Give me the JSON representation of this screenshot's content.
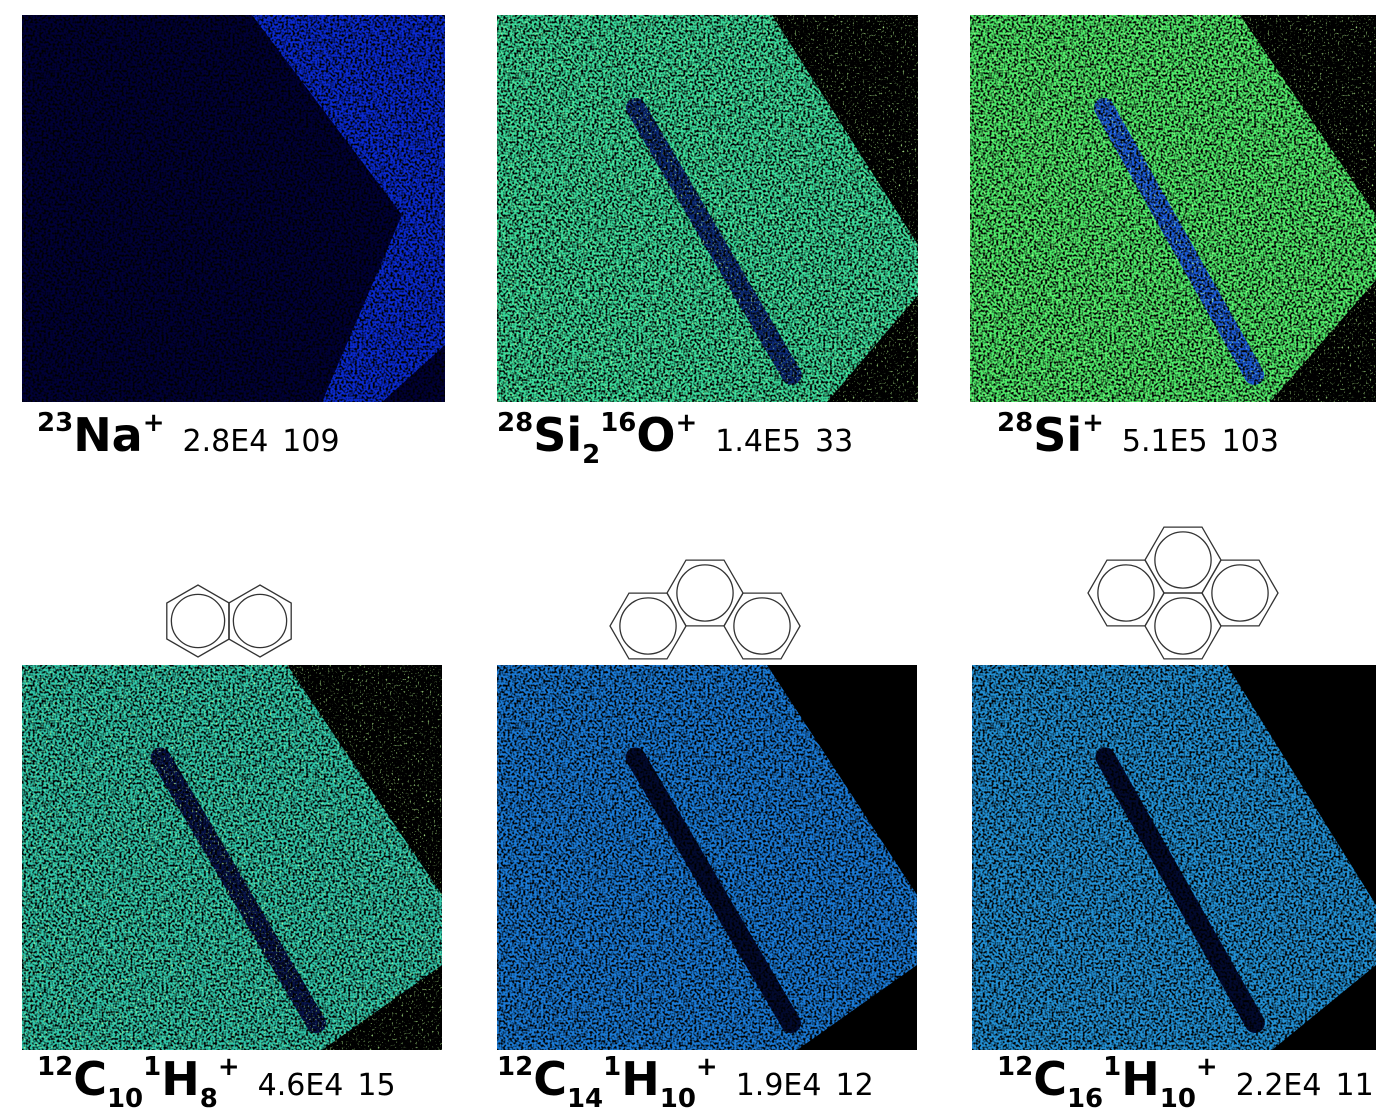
{
  "panels": [
    {
      "formula": [
        {
          "isotope": 23,
          "element": "Na"
        }
      ],
      "charge": "+",
      "total": "2.8E4",
      "max": 109
    },
    {
      "formula": [
        {
          "isotope": 28,
          "element": "Si",
          "count": 2
        },
        {
          "isotope": 16,
          "element": "O"
        }
      ],
      "charge": "+",
      "total": "1.4E5",
      "max": 33
    },
    {
      "formula": [
        {
          "isotope": 28,
          "element": "Si"
        }
      ],
      "charge": "+",
      "total": "5.1E5",
      "max": 103
    },
    {
      "formula": [
        {
          "isotope": 12,
          "element": "C",
          "count": 10
        },
        {
          "isotope": 1,
          "element": "H",
          "count": 8
        }
      ],
      "charge": "+",
      "total": "4.6E4",
      "max": 15
    },
    {
      "formula": [
        {
          "isotope": 12,
          "element": "C",
          "count": 14
        },
        {
          "isotope": 1,
          "element": "H",
          "count": 10
        }
      ],
      "charge": "+",
      "total": "1.9E4",
      "max": 12
    },
    {
      "formula": [
        {
          "isotope": 12,
          "element": "C",
          "count": 16
        },
        {
          "isotope": 1,
          "element": "H",
          "count": 10
        }
      ],
      "charge": "+",
      "total": "2.2E4",
      "max": 11
    }
  ]
}
